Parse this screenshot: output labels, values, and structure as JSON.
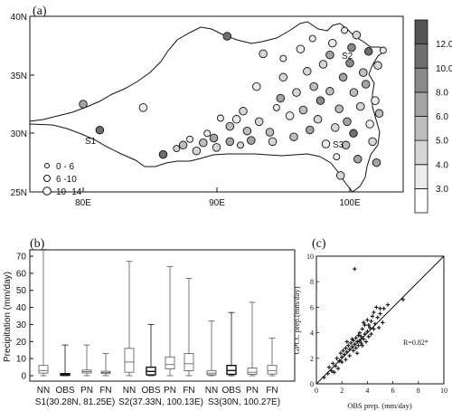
{
  "panel_a": {
    "label": "(a)",
    "lat_ticks": [
      "25N",
      "30N",
      "35N",
      "40N"
    ],
    "lon_ticks": [
      "80E",
      "90E",
      "100E"
    ],
    "site_labels": [
      "S1",
      "S2",
      "S3"
    ],
    "legend": [
      "0 - 6",
      "6 -10",
      "10 -14"
    ],
    "colorbar_labels": [
      "3.0",
      "4.0",
      "5.0",
      "6.0",
      "8.0",
      "10.0",
      "12.0"
    ],
    "colorbar_colors": [
      "#ffffff",
      "#ececec",
      "#d6d6d6",
      "#bebebe",
      "#a4a4a4",
      "#8a8a8a",
      "#6e6e6e",
      "#545454"
    ],
    "outline_color": "#111111"
  },
  "panel_b": {
    "label": "(b)",
    "ylabel": "Precipitation (mm/day)",
    "y_ticks": [
      "0",
      "10",
      "20",
      "30",
      "40",
      "50",
      "60",
      "70"
    ],
    "groups": [
      {
        "box_labels": [
          "NN",
          "OBS",
          "PN",
          "FN"
        ],
        "site": "S1(30.28N, 81.25E)"
      },
      {
        "box_labels": [
          "NN",
          "OBS",
          "PN",
          "FN"
        ],
        "site": "S2(37.33N, 100.13E)"
      },
      {
        "box_labels": [
          "NN",
          "OBS",
          "PN",
          "FN"
        ],
        "site": "S3(30N, 100.27E)"
      }
    ]
  },
  "panel_c": {
    "label": "(c)",
    "xlabel": "OBS prep. (mm/day)",
    "ylabel": "GPCC prep.(mm/day)",
    "x_ticks": [
      "0",
      "2",
      "4",
      "6",
      "8",
      "10"
    ],
    "y_ticks": [
      "0",
      "2",
      "4",
      "6",
      "8",
      "10"
    ],
    "annotation": "R=0.82*"
  },
  "chart_data": [
    {
      "type": "scatter",
      "title": "",
      "xlabel": "",
      "ylabel": "",
      "xlim": [
        76,
        104
      ],
      "ylim": [
        25,
        40
      ],
      "legend_placement": "bottom-left",
      "size_legend_bins": [
        "0 - 6",
        "6 -10",
        "10 -14"
      ],
      "colorbar": {
        "ticks": [
          3.0,
          4.0,
          5.0,
          6.0,
          8.0,
          10.0,
          12.0
        ]
      },
      "sites": [
        {
          "name": "S1",
          "lon": 81.25,
          "lat": 30.28
        },
        {
          "name": "S2",
          "lon": 100.13,
          "lat": 37.33
        },
        {
          "name": "S3",
          "lon": 100.27,
          "lat": 30.0
        }
      ],
      "stations": [
        {
          "lon": 80.0,
          "lat": 32.5,
          "value": 6.5,
          "size": 2
        },
        {
          "lon": 81.25,
          "lat": 30.28,
          "value": 11.5,
          "size": 2
        },
        {
          "lon": 84.5,
          "lat": 32.2,
          "value": 3.5,
          "size": 2
        },
        {
          "lon": 86.0,
          "lat": 28.2,
          "value": 10.5,
          "size": 2
        },
        {
          "lon": 87.0,
          "lat": 28.7,
          "value": 4.0,
          "size": 1
        },
        {
          "lon": 87.5,
          "lat": 29.0,
          "value": 5.0,
          "size": 2
        },
        {
          "lon": 88.0,
          "lat": 29.5,
          "value": 3.5,
          "size": 1
        },
        {
          "lon": 88.5,
          "lat": 28.5,
          "value": 4.5,
          "size": 2
        },
        {
          "lon": 89.0,
          "lat": 29.2,
          "value": 5.5,
          "size": 2
        },
        {
          "lon": 89.3,
          "lat": 30.0,
          "value": 3.0,
          "size": 1
        },
        {
          "lon": 89.8,
          "lat": 29.6,
          "value": 7.0,
          "size": 2
        },
        {
          "lon": 90.0,
          "lat": 28.8,
          "value": 4.5,
          "size": 2
        },
        {
          "lon": 90.3,
          "lat": 31.3,
          "value": 3.5,
          "size": 1
        },
        {
          "lon": 90.8,
          "lat": 38.3,
          "value": 11.0,
          "size": 2
        },
        {
          "lon": 91.0,
          "lat": 29.3,
          "value": 6.5,
          "size": 2
        },
        {
          "lon": 91.0,
          "lat": 30.6,
          "value": 5.0,
          "size": 2
        },
        {
          "lon": 91.5,
          "lat": 31.2,
          "value": 3.5,
          "size": 2
        },
        {
          "lon": 91.8,
          "lat": 29.0,
          "value": 4.0,
          "size": 1
        },
        {
          "lon": 92.0,
          "lat": 31.9,
          "value": 4.5,
          "size": 2
        },
        {
          "lon": 92.3,
          "lat": 30.2,
          "value": 5.5,
          "size": 2
        },
        {
          "lon": 92.6,
          "lat": 29.4,
          "value": 7.5,
          "size": 2
        },
        {
          "lon": 93.0,
          "lat": 34.0,
          "value": 3.5,
          "size": 2
        },
        {
          "lon": 93.2,
          "lat": 31.0,
          "value": 4.5,
          "size": 2
        },
        {
          "lon": 93.5,
          "lat": 36.8,
          "value": 4.0,
          "size": 2
        },
        {
          "lon": 94.0,
          "lat": 30.1,
          "value": 5.5,
          "size": 2
        },
        {
          "lon": 94.2,
          "lat": 29.3,
          "value": 4.0,
          "size": 2
        },
        {
          "lon": 94.5,
          "lat": 32.2,
          "value": 3.0,
          "size": 1
        },
        {
          "lon": 94.8,
          "lat": 33.0,
          "value": 6.0,
          "size": 2
        },
        {
          "lon": 95.0,
          "lat": 36.4,
          "value": 3.5,
          "size": 1
        },
        {
          "lon": 95.0,
          "lat": 34.8,
          "value": 4.5,
          "size": 2
        },
        {
          "lon": 95.5,
          "lat": 31.5,
          "value": 3.0,
          "size": 2
        },
        {
          "lon": 95.8,
          "lat": 29.7,
          "value": 5.0,
          "size": 2
        },
        {
          "lon": 96.0,
          "lat": 33.5,
          "value": 4.5,
          "size": 2
        },
        {
          "lon": 96.3,
          "lat": 37.2,
          "value": 3.5,
          "size": 2
        },
        {
          "lon": 96.5,
          "lat": 32.0,
          "value": 5.5,
          "size": 2
        },
        {
          "lon": 96.8,
          "lat": 35.3,
          "value": 4.0,
          "size": 2
        },
        {
          "lon": 97.0,
          "lat": 30.3,
          "value": 6.5,
          "size": 2
        },
        {
          "lon": 97.2,
          "lat": 38.1,
          "value": 3.5,
          "size": 1
        },
        {
          "lon": 97.3,
          "lat": 34.0,
          "value": 5.0,
          "size": 2
        },
        {
          "lon": 97.6,
          "lat": 31.2,
          "value": 4.0,
          "size": 2
        },
        {
          "lon": 97.8,
          "lat": 32.8,
          "value": 9.5,
          "size": 2
        },
        {
          "lon": 98.0,
          "lat": 35.9,
          "value": 4.5,
          "size": 2
        },
        {
          "lon": 98.2,
          "lat": 29.1,
          "value": 3.5,
          "size": 2
        },
        {
          "lon": 98.5,
          "lat": 33.6,
          "value": 5.5,
          "size": 2
        },
        {
          "lon": 98.5,
          "lat": 36.7,
          "value": 6.0,
          "size": 2
        },
        {
          "lon": 98.7,
          "lat": 37.7,
          "value": 3.0,
          "size": 2
        },
        {
          "lon": 98.9,
          "lat": 30.5,
          "value": 4.5,
          "size": 2
        },
        {
          "lon": 99.0,
          "lat": 28.0,
          "value": 3.0,
          "size": 1
        },
        {
          "lon": 99.2,
          "lat": 32.1,
          "value": 5.0,
          "size": 2
        },
        {
          "lon": 99.3,
          "lat": 26.4,
          "value": 4.0,
          "size": 2
        },
        {
          "lon": 99.5,
          "lat": 34.8,
          "value": 6.5,
          "size": 2
        },
        {
          "lon": 99.6,
          "lat": 38.8,
          "value": 3.5,
          "size": 1
        },
        {
          "lon": 99.7,
          "lat": 29.0,
          "value": 5.5,
          "size": 2
        },
        {
          "lon": 99.8,
          "lat": 31.0,
          "value": 7.0,
          "size": 2
        },
        {
          "lon": 100.0,
          "lat": 36.0,
          "value": 8.5,
          "size": 2
        },
        {
          "lon": 100.13,
          "lat": 37.33,
          "value": 9.5,
          "size": 2
        },
        {
          "lon": 100.27,
          "lat": 30.0,
          "value": 11.0,
          "size": 2
        },
        {
          "lon": 100.3,
          "lat": 33.5,
          "value": 5.0,
          "size": 2
        },
        {
          "lon": 100.5,
          "lat": 38.4,
          "value": 4.5,
          "size": 2
        },
        {
          "lon": 100.6,
          "lat": 27.8,
          "value": 6.0,
          "size": 2
        },
        {
          "lon": 100.8,
          "lat": 32.3,
          "value": 4.0,
          "size": 2
        },
        {
          "lon": 101.0,
          "lat": 35.2,
          "value": 5.5,
          "size": 2
        },
        {
          "lon": 101.2,
          "lat": 34.2,
          "value": 6.5,
          "size": 2
        },
        {
          "lon": 101.4,
          "lat": 37.0,
          "value": 10.5,
          "size": 2
        },
        {
          "lon": 101.5,
          "lat": 30.8,
          "value": 3.5,
          "size": 2
        },
        {
          "lon": 101.7,
          "lat": 29.3,
          "value": 4.5,
          "size": 2
        },
        {
          "lon": 101.9,
          "lat": 32.8,
          "value": 3.0,
          "size": 2
        },
        {
          "lon": 102.0,
          "lat": 27.5,
          "value": 6.5,
          "size": 2
        },
        {
          "lon": 102.1,
          "lat": 35.8,
          "value": 4.0,
          "size": 2
        },
        {
          "lon": 102.2,
          "lat": 31.7,
          "value": 5.0,
          "size": 2
        },
        {
          "lon": 102.5,
          "lat": 37.1,
          "value": 3.5,
          "size": 1
        }
      ]
    },
    {
      "type": "box",
      "title": "",
      "ylabel": "Precipitation (mm/day)",
      "ylim": [
        0,
        78
      ],
      "categories": [
        "NN",
        "OBS",
        "PN",
        "FN",
        "NN",
        "OBS",
        "PN",
        "FN",
        "NN",
        "OBS",
        "PN",
        "FN"
      ],
      "group_labels": [
        "S1(30.28N, 81.25E)",
        "S2(37.33N, 100.13E)",
        "S3(30N, 100.27E)"
      ],
      "boxes": [
        {
          "min": 0,
          "q1": 1.5,
          "median": 3.0,
          "q3": 6.0,
          "max": 74
        },
        {
          "min": 0,
          "q1": 0.2,
          "median": 0.6,
          "q3": 1.2,
          "max": 18
        },
        {
          "min": 0,
          "q1": 1.6,
          "median": 2.4,
          "q3": 3.3,
          "max": 18
        },
        {
          "min": 0,
          "q1": 1.2,
          "median": 1.8,
          "q3": 2.6,
          "max": 13
        },
        {
          "min": 0,
          "q1": 2.0,
          "median": 8.0,
          "q3": 16.0,
          "max": 67
        },
        {
          "min": 0,
          "q1": 0.5,
          "median": 2.5,
          "q3": 5.0,
          "max": 30
        },
        {
          "min": 0,
          "q1": 4.0,
          "median": 6.5,
          "q3": 11.0,
          "max": 64
        },
        {
          "min": 0,
          "q1": 3.0,
          "median": 7.0,
          "q3": 13.0,
          "max": 57
        },
        {
          "min": 0,
          "q1": 0.5,
          "median": 1.5,
          "q3": 3.0,
          "max": 32
        },
        {
          "min": 0,
          "q1": 0.8,
          "median": 3.0,
          "q3": 6.0,
          "max": 37
        },
        {
          "min": 0,
          "q1": 0.8,
          "median": 2.0,
          "q3": 4.5,
          "max": 43
        },
        {
          "min": 0,
          "q1": 1.0,
          "median": 3.0,
          "q3": 6.0,
          "max": 22
        }
      ]
    },
    {
      "type": "scatter",
      "title": "",
      "xlabel": "OBS prep. (mm/day)",
      "ylabel": "GPCC prep.(mm/day)",
      "xlim": [
        0,
        10
      ],
      "ylim": [
        0,
        10
      ],
      "reference_line": "y=x",
      "annotation": "R=0.82*",
      "points": [
        [
          0.6,
          0.5
        ],
        [
          0.9,
          0.8
        ],
        [
          1.0,
          1.3
        ],
        [
          1.2,
          1.0
        ],
        [
          1.3,
          1.6
        ],
        [
          1.5,
          1.4
        ],
        [
          1.6,
          2.0
        ],
        [
          1.7,
          1.2
        ],
        [
          1.8,
          1.8
        ],
        [
          1.9,
          2.4
        ],
        [
          2.0,
          1.7
        ],
        [
          2.0,
          2.1
        ],
        [
          2.1,
          2.6
        ],
        [
          2.2,
          2.3
        ],
        [
          2.3,
          1.9
        ],
        [
          2.3,
          2.8
        ],
        [
          2.4,
          2.5
        ],
        [
          2.5,
          3.0
        ],
        [
          2.6,
          2.2
        ],
        [
          2.6,
          2.7
        ],
        [
          2.7,
          3.2
        ],
        [
          2.8,
          2.9
        ],
        [
          2.8,
          3.5
        ],
        [
          2.9,
          2.6
        ],
        [
          3.0,
          3.1
        ],
        [
          3.0,
          9.0
        ],
        [
          3.1,
          3.6
        ],
        [
          3.1,
          2.8
        ],
        [
          3.2,
          3.3
        ],
        [
          3.2,
          2.4
        ],
        [
          3.3,
          3.8
        ],
        [
          3.3,
          3.0
        ],
        [
          3.4,
          3.4
        ],
        [
          3.4,
          4.0
        ],
        [
          3.5,
          3.2
        ],
        [
          3.5,
          3.7
        ],
        [
          3.6,
          4.3
        ],
        [
          3.6,
          3.0
        ],
        [
          3.7,
          3.5
        ],
        [
          3.8,
          3.9
        ],
        [
          3.8,
          4.6
        ],
        [
          3.9,
          3.3
        ],
        [
          4.0,
          4.1
        ],
        [
          4.0,
          5.0
        ],
        [
          4.1,
          3.7
        ],
        [
          4.2,
          4.4
        ],
        [
          4.3,
          4.9
        ],
        [
          4.3,
          3.9
        ],
        [
          4.4,
          5.3
        ],
        [
          4.5,
          4.3
        ],
        [
          4.5,
          5.6
        ],
        [
          4.6,
          4.7
        ],
        [
          4.7,
          6.0
        ],
        [
          4.8,
          5.2
        ],
        [
          4.9,
          4.4
        ],
        [
          5.0,
          5.5
        ],
        [
          5.0,
          5.9
        ],
        [
          5.2,
          4.8
        ],
        [
          5.3,
          5.9
        ],
        [
          5.6,
          6.2
        ],
        [
          6.8,
          6.6
        ],
        [
          1.4,
          0.9
        ],
        [
          2.4,
          3.3
        ],
        [
          3.7,
          4.8
        ],
        [
          4.1,
          4.6
        ],
        [
          2.9,
          3.4
        ]
      ]
    }
  ]
}
